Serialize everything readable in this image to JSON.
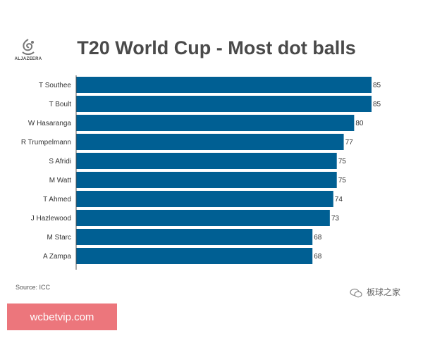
{
  "logo": {
    "name": "ALJAZEERA"
  },
  "source": "Source: ICC",
  "watermark": "板球之家",
  "promo": "wcbetvip.com",
  "colors": {
    "bar": "#005f93",
    "axis": "#555555",
    "title": "#4a4a4a"
  },
  "chart_data": {
    "type": "bar",
    "orientation": "horizontal",
    "title": "T20 World Cup - Most dot balls",
    "categories": [
      "T Southee",
      "T Boult",
      "W Hasaranga",
      "R Trumpelmann",
      "S Afridi",
      "M Watt",
      "T Ahmed",
      "J Hazlewood",
      "M Starc",
      "A Zampa"
    ],
    "values": [
      85,
      85,
      80,
      77,
      75,
      75,
      74,
      73,
      68,
      68
    ],
    "xlim": [
      0,
      85
    ],
    "data_labels": true,
    "grid": false,
    "legend": false
  }
}
